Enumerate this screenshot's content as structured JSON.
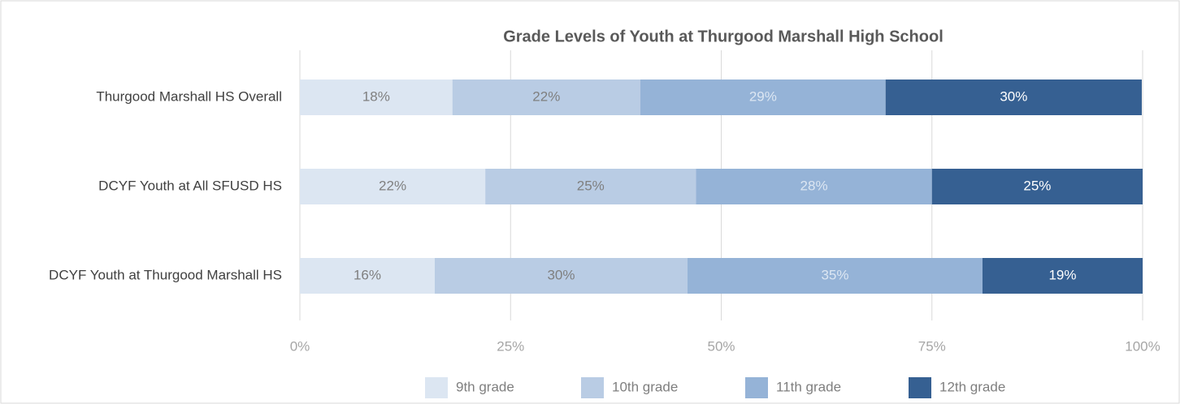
{
  "chart_data": {
    "type": "stacked-bar-horizontal",
    "title": "Grade Levels of Youth at Thurgood Marshall High School",
    "categories": [
      "Thurgood Marshall HS Overall",
      "DCYF Youth at All SFUSD HS",
      "DCYF Youth at Thurgood Marshall HS"
    ],
    "series": [
      {
        "name": "9th grade",
        "color": "#dce6f2",
        "values": [
          18.1,
          22,
          16
        ],
        "value_labels": [
          "18%",
          "22%",
          "16%"
        ]
      },
      {
        "name": "10th grade",
        "color": "#b9cce4",
        "values": [
          22.3,
          25,
          30
        ],
        "value_labels": [
          "22%",
          "25%",
          "30%"
        ]
      },
      {
        "name": "11th grade",
        "color": "#95b3d7",
        "values": [
          29.1,
          28,
          35
        ],
        "value_labels": [
          "29%",
          "28%",
          "35%"
        ]
      },
      {
        "name": "12th grade",
        "color": "#366092",
        "values": [
          30.4,
          25,
          19
        ],
        "value_labels": [
          "30%",
          "25%",
          "19%"
        ]
      }
    ],
    "xlim": [
      0,
      100
    ],
    "xticks": [
      {
        "value": 0,
        "label": "0%"
      },
      {
        "value": 25,
        "label": "25%"
      },
      {
        "value": 50,
        "label": "50%"
      },
      {
        "value": 75,
        "label": "75%"
      },
      {
        "value": 100,
        "label": "100%"
      }
    ],
    "grid": true,
    "legend": "bottom"
  }
}
